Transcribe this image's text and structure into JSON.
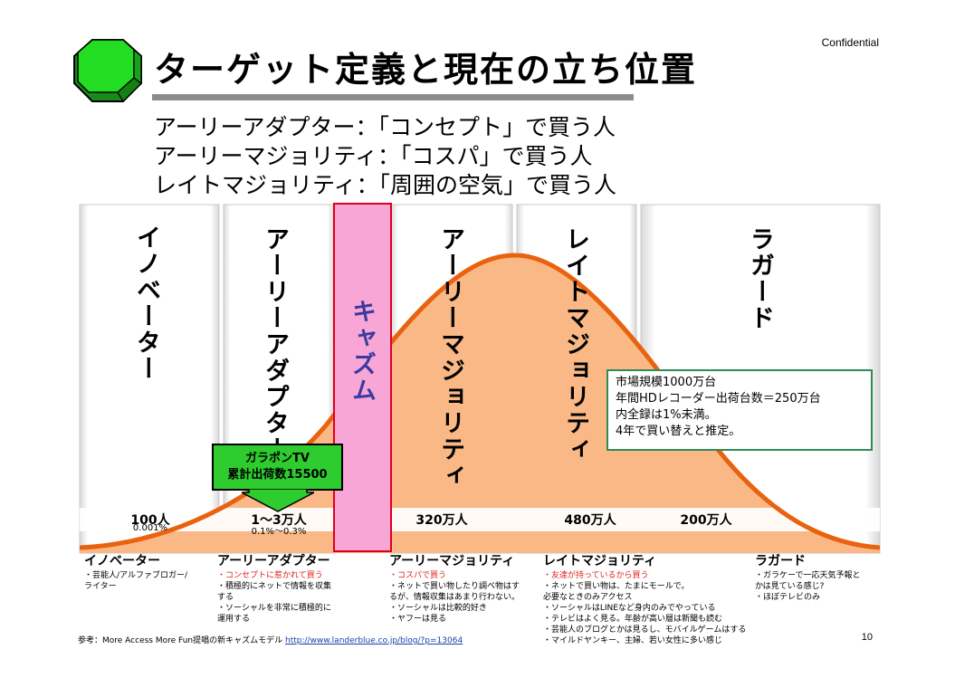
{
  "header": {
    "confidential": "Confidential",
    "title": "ターゲット定義と現在の立ち位置",
    "logo_icon": "green-octagon-3d-icon"
  },
  "subtitles": [
    "アーリーアダプター：「コンセプト」で買う人",
    "アーリーマジョリティ：「コスパ」で買う人",
    "レイトマジョリティ：「周囲の空気」で買う人"
  ],
  "segments": {
    "innovator": {
      "label": "イノベーター",
      "count": "100人",
      "pct": "0.001%"
    },
    "early_adopter": {
      "label": "アーリーアダプター",
      "count": "1～3万人",
      "pct": "0.1%～0.3%"
    },
    "chasm": {
      "label": "キャズム"
    },
    "early_majority": {
      "label": "アーリーマジョリティ",
      "count": "320万人"
    },
    "late_majority": {
      "label": "レイトマジョリティ",
      "count": "480万人"
    },
    "laggard": {
      "label": "ラガード",
      "count": "200万人"
    }
  },
  "callout_tv": {
    "line1": "ガラポンTV",
    "line2": "累計出荷数15500"
  },
  "info_box": {
    "lines": [
      "市場規模1000万台",
      "年間HDレコーダー出荷台数＝250万台",
      "内全録は1%未満。",
      "4年で買い替えと推定。"
    ]
  },
  "descriptions": {
    "innovator": {
      "title": "イノベーター",
      "lines": [
        "・芸能人/アルファブロガー/",
        "ライター"
      ]
    },
    "early_adopter": {
      "title": "アーリーアダプター",
      "red": "・コンセプトに惹かれて買う",
      "lines": [
        "・積極的にネットで情報を収集",
        "する",
        "・ソーシャルを非常に積極的に",
        "運用する"
      ]
    },
    "early_majority": {
      "title": "アーリーマジョリティ",
      "red": "・コスパで買う",
      "lines": [
        "・ネットで買い物したり調べ物はす",
        "るが、情報収集はあまり行わない。",
        "・ソーシャルは比較的好き",
        "・ヤフーは見る"
      ]
    },
    "late_majority": {
      "title": "レイトマジョリティ",
      "red": "・友達が持っているから買う",
      "lines": [
        "・ネットで買い物は、たまにモールで。",
        "必要なときのみアクセス",
        "・ソーシャルはLINEなど身内のみでやっている",
        "・テレビはよく見る。年齢が高い層は新聞も読む",
        "・芸能人のブログとかは見るし、モバイルゲームはする",
        "・マイルドヤンキー、主婦、若い女性に多い感じ"
      ]
    },
    "laggard": {
      "title": "ラガード",
      "lines": [
        "・ガラケーで一応天気予報と",
        "かは見ている感じ?",
        "・ほぼテレビのみ"
      ]
    }
  },
  "footer": {
    "reference": "参考：More Access More Fun提唱の新キャズムモデル ",
    "link": "http://www.landerblue.co.jp/blog/?p=13064",
    "page": "10"
  },
  "colors": {
    "curve_fill": "#f9b886",
    "curve_stroke": "#e8620f",
    "chasm_fill": "#f7a6d6",
    "chasm_border": "#e0001b",
    "callout_green": "#2ecc2e",
    "logo_green": "#22dd22"
  }
}
